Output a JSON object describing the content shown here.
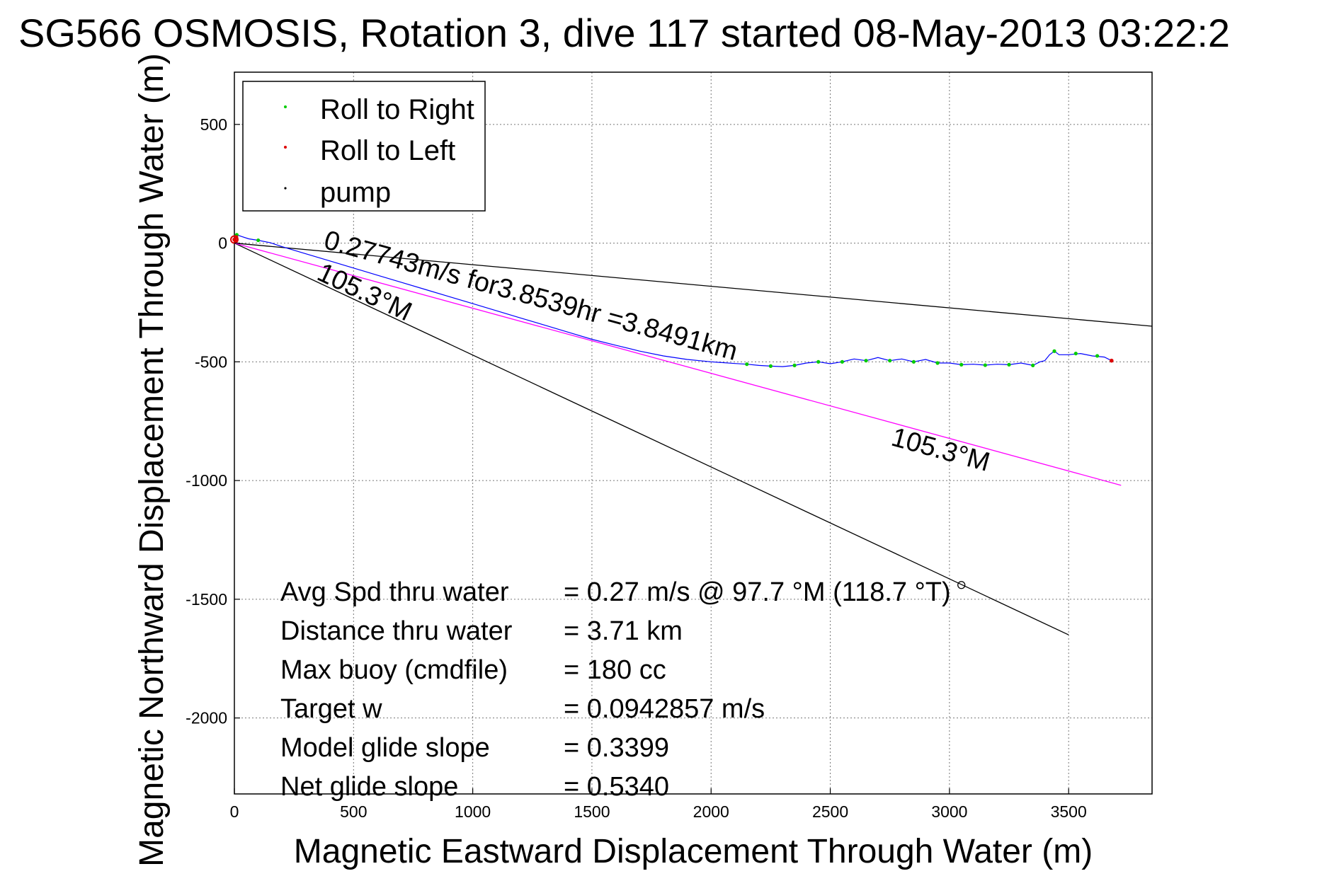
{
  "chart_data": {
    "type": "line",
    "title": "SG566 OSMOSIS, Rotation 3, dive 117 started 08-May-2013 03:22:2",
    "xlabel": "Magnetic Eastward Displacement Through Water (m)",
    "ylabel": "Magnetic Northward Displacement Through Water (m)",
    "xlim": [
      0,
      3850
    ],
    "ylim": [
      -2320,
      720
    ],
    "xticks": [
      0,
      500,
      1000,
      1500,
      2000,
      2500,
      3000,
      3500
    ],
    "yticks": [
      500,
      0,
      -500,
      -1000,
      -1500,
      -2000
    ],
    "grid": true,
    "legend": {
      "placement": "top-left",
      "entries": [
        {
          "label": "Roll to Right",
          "color": "#00cc00"
        },
        {
          "label": "Roll to Left",
          "color": "#dd0000"
        },
        {
          "label": "pump",
          "color": "#000000"
        }
      ]
    },
    "lines": [
      {
        "id": "black-heading-upper",
        "color": "#000000",
        "points": [
          [
            0,
            0
          ],
          [
            3850,
            -350
          ]
        ]
      },
      {
        "id": "black-heading-lower",
        "color": "#000000",
        "points": [
          [
            0,
            0
          ],
          [
            3500,
            -1650
          ]
        ]
      },
      {
        "id": "magenta-heading",
        "color": "#ff00ff",
        "points": [
          [
            0,
            0
          ],
          [
            3720,
            -1020
          ]
        ]
      }
    ],
    "track": {
      "color": "#0000ff",
      "points": [
        [
          0,
          15
        ],
        [
          10,
          35
        ],
        [
          30,
          28
        ],
        [
          60,
          18
        ],
        [
          100,
          12
        ],
        [
          150,
          2
        ],
        [
          200,
          -15
        ],
        [
          300,
          -45
        ],
        [
          400,
          -75
        ],
        [
          500,
          -105
        ],
        [
          600,
          -135
        ],
        [
          700,
          -165
        ],
        [
          800,
          -195
        ],
        [
          900,
          -225
        ],
        [
          1000,
          -255
        ],
        [
          1100,
          -285
        ],
        [
          1200,
          -315
        ],
        [
          1300,
          -345
        ],
        [
          1400,
          -375
        ],
        [
          1500,
          -405
        ],
        [
          1600,
          -430
        ],
        [
          1700,
          -455
        ],
        [
          1800,
          -475
        ],
        [
          1900,
          -490
        ],
        [
          2000,
          -500
        ],
        [
          2100,
          -507
        ],
        [
          2150,
          -510
        ],
        [
          2200,
          -515
        ],
        [
          2250,
          -518
        ],
        [
          2300,
          -520
        ],
        [
          2350,
          -515
        ],
        [
          2400,
          -505
        ],
        [
          2450,
          -500
        ],
        [
          2500,
          -508
        ],
        [
          2550,
          -500
        ],
        [
          2600,
          -488
        ],
        [
          2650,
          -495
        ],
        [
          2700,
          -482
        ],
        [
          2750,
          -495
        ],
        [
          2800,
          -488
        ],
        [
          2850,
          -500
        ],
        [
          2900,
          -490
        ],
        [
          2950,
          -505
        ],
        [
          3000,
          -505
        ],
        [
          3050,
          -512
        ],
        [
          3100,
          -510
        ],
        [
          3150,
          -514
        ],
        [
          3200,
          -510
        ],
        [
          3250,
          -512
        ],
        [
          3300,
          -505
        ],
        [
          3350,
          -515
        ],
        [
          3380,
          -500
        ],
        [
          3400,
          -495
        ],
        [
          3420,
          -470
        ],
        [
          3440,
          -455
        ],
        [
          3460,
          -470
        ],
        [
          3500,
          -470
        ],
        [
          3550,
          -465
        ],
        [
          3600,
          -475
        ],
        [
          3650,
          -480
        ],
        [
          3680,
          -495
        ]
      ]
    },
    "roll_right_points": [
      [
        10,
        35
      ],
      [
        100,
        12
      ],
      [
        2150,
        -510
      ],
      [
        2250,
        -518
      ],
      [
        2350,
        -515
      ],
      [
        2450,
        -500
      ],
      [
        2550,
        -500
      ],
      [
        2650,
        -495
      ],
      [
        2750,
        -495
      ],
      [
        2850,
        -500
      ],
      [
        2950,
        -505
      ],
      [
        3050,
        -512
      ],
      [
        3150,
        -514
      ],
      [
        3250,
        -512
      ],
      [
        3350,
        -515
      ],
      [
        3440,
        -455
      ],
      [
        3530,
        -465
      ],
      [
        3620,
        -475
      ]
    ],
    "roll_left_points": [
      [
        5,
        10
      ],
      [
        8,
        25
      ],
      [
        0,
        15
      ],
      [
        3680,
        -495
      ]
    ],
    "pump_points": [
      [
        3050,
        -1440
      ]
    ],
    "annotations": [
      {
        "text": "0.27743m/s for3.8539hr =3.8491km",
        "x": 370,
        "y": -20
      },
      {
        "text": "105.3°M",
        "x": 340,
        "y": -150
      },
      {
        "text": "105.3°M",
        "x": 2750,
        "y": -850
      }
    ],
    "stats": [
      {
        "label": "Avg Spd thru water",
        "value": "=  0.27 m/s @  97.7 °M (118.7 °T)"
      },
      {
        "label": "Distance thru water",
        "value": "=  3.71 km"
      },
      {
        "label": "Max buoy (cmdfile)",
        "value": "= 180 cc"
      },
      {
        "label": "Target w",
        "value": "= 0.0942857 m/s"
      },
      {
        "label": "Model glide slope",
        "value": "= 0.3399"
      },
      {
        "label": "Net glide slope",
        "value": "= 0.5340"
      }
    ]
  }
}
